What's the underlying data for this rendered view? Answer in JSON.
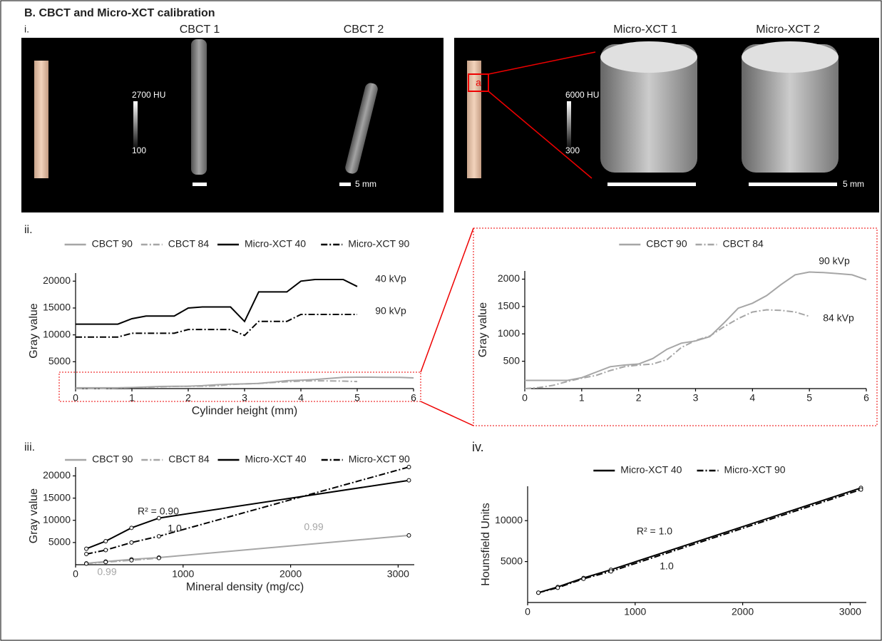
{
  "header": {
    "title": "B. CBCT and Micro-XCT calibration"
  },
  "panels": {
    "i": "i.",
    "ii": "ii.",
    "iii": "iii.",
    "iv": "iv."
  },
  "images": {
    "cbct1": "CBCT 1",
    "cbct2": "CBCT 2",
    "microxct1": "Micro-XCT 1",
    "microxct2": "Micro-XCT 2",
    "cbct_bar_top": "2700 HU",
    "cbct_bar_bottom": "100",
    "micro_bar_top": "6000 HU",
    "micro_bar_bottom": "300",
    "cbct_scale": "5 mm",
    "micro_scale": "5 mm",
    "region": "a"
  },
  "chart_data": [
    {
      "type": "line",
      "x_label": "Cylinder height (mm)",
      "y_label": "Gray value",
      "x": [
        0,
        0.25,
        0.5,
        0.75,
        1,
        1.25,
        1.5,
        1.75,
        2,
        2.25,
        2.5,
        2.75,
        3,
        3.25,
        3.5,
        3.75,
        4,
        4.25,
        4.5,
        4.75,
        5,
        5.25,
        5.5,
        5.75,
        6
      ],
      "series": [
        {
          "name": "CBCT 90",
          "color": "#a6a6a6",
          "dash": "solid",
          "values": [
            150,
            150,
            150,
            150,
            200,
            300,
            400,
            430,
            450,
            550,
            720,
            830,
            870,
            950,
            1200,
            1470,
            1560,
            1700,
            1900,
            2080,
            2130,
            2120,
            2100,
            2080,
            1990
          ]
        },
        {
          "name": "CBCT 84",
          "color": "#a6a6a6",
          "dash": "dashdot",
          "values": [
            0,
            20,
            60,
            130,
            190,
            240,
            330,
            400,
            430,
            450,
            530,
            750,
            880,
            960,
            1130,
            1280,
            1400,
            1440,
            1430,
            1400,
            1320,
            null,
            null,
            null,
            null
          ]
        },
        {
          "name": "Micro-XCT 40",
          "color": "#000000",
          "dash": "solid",
          "values": [
            12000,
            12000,
            12000,
            12000,
            13000,
            13500,
            13500,
            13500,
            15000,
            15200,
            15200,
            15200,
            12500,
            18000,
            18000,
            18000,
            20000,
            20300,
            20300,
            20300,
            19000,
            null,
            null,
            null,
            null
          ]
        },
        {
          "name": "Micro-XCT 90",
          "color": "#000000",
          "dash": "dashdot",
          "values": [
            9600,
            9600,
            9600,
            9600,
            10300,
            10300,
            10300,
            10300,
            11000,
            11000,
            11000,
            11000,
            9900,
            12500,
            12500,
            12500,
            13800,
            13800,
            13800,
            13800,
            13800,
            null,
            null,
            null,
            null
          ]
        }
      ],
      "annotations": [
        "40 kVp",
        "90 kVp"
      ],
      "xlim": [
        0,
        6
      ],
      "xticks": [
        0,
        1,
        2,
        3,
        4,
        5,
        6
      ],
      "ylim": [
        0,
        21500
      ],
      "yticks": [
        5000,
        10000,
        15000,
        20000
      ],
      "legend": "top"
    },
    {
      "type": "line",
      "y_label": "Gray value",
      "x": [
        0,
        0.25,
        0.5,
        0.75,
        1,
        1.25,
        1.5,
        1.75,
        2,
        2.25,
        2.5,
        2.75,
        3,
        3.25,
        3.5,
        3.75,
        4,
        4.25,
        4.5,
        4.75,
        5,
        5.25,
        5.5,
        5.75,
        6
      ],
      "series": [
        {
          "name": "CBCT 90",
          "color": "#a6a6a6",
          "dash": "solid",
          "values": [
            150,
            150,
            150,
            150,
            200,
            300,
            400,
            430,
            450,
            550,
            720,
            830,
            870,
            950,
            1200,
            1470,
            1560,
            1700,
            1900,
            2080,
            2130,
            2120,
            2100,
            2080,
            1990
          ]
        },
        {
          "name": "CBCT 84",
          "color": "#a6a6a6",
          "dash": "dashdot",
          "values": [
            0,
            20,
            60,
            130,
            190,
            240,
            330,
            400,
            430,
            450,
            530,
            750,
            880,
            960,
            1130,
            1280,
            1400,
            1440,
            1430,
            1400,
            1320,
            null,
            null,
            null,
            null
          ]
        }
      ],
      "annotations": [
        "90 kVp",
        "84 kVp"
      ],
      "xlim": [
        0,
        6
      ],
      "xticks": [
        0,
        1,
        2,
        3,
        4,
        5,
        6
      ],
      "ylim": [
        0,
        2150
      ],
      "yticks": [
        500,
        1000,
        1500,
        2000
      ],
      "legend": "top"
    },
    {
      "type": "line",
      "markers": true,
      "x_label": "Mineral density (mg/cc)",
      "y_label": "Gray value",
      "x": [
        100,
        280,
        520,
        775,
        3100
      ],
      "series": [
        {
          "name": "CBCT 90",
          "color": "#a6a6a6",
          "dash": "solid",
          "values": [
            300,
            700,
            1200,
            1600,
            6600
          ]
        },
        {
          "name": "CBCT 84",
          "color": "#a6a6a6",
          "dash": "dashdot",
          "values": [
            250,
            600,
            1000,
            1500,
            null
          ]
        },
        {
          "name": "Micro-XCT 40",
          "color": "#000000",
          "dash": "solid",
          "values": [
            3600,
            5300,
            8300,
            10500,
            19000
          ]
        },
        {
          "name": "Micro-XCT 90",
          "color": "#000000",
          "dash": "dashdot",
          "values": [
            2400,
            3300,
            5000,
            6400,
            22000
          ]
        }
      ],
      "annotations": [
        "R² = 0.90",
        "1.0",
        "0.99",
        "0.99"
      ],
      "xlim": [
        0,
        3150
      ],
      "xticks": [
        0,
        1000,
        2000,
        3000
      ],
      "ylim": [
        0,
        22000
      ],
      "yticks": [
        5000,
        10000,
        15000,
        20000
      ],
      "legend": "top"
    },
    {
      "type": "line",
      "markers": true,
      "y_label": "Hounsfield Units",
      "x": [
        100,
        280,
        520,
        775,
        3100
      ],
      "series": [
        {
          "name": "Micro-XCT 40",
          "color": "#000000",
          "dash": "solid",
          "values": [
            1200,
            1900,
            3000,
            4000,
            14000
          ]
        },
        {
          "name": "Micro-XCT 90",
          "color": "#000000",
          "dash": "dashdot",
          "values": [
            1200,
            1800,
            2900,
            3800,
            13800
          ]
        }
      ],
      "annotations": [
        "R² = 1.0",
        "1.0"
      ],
      "xlim": [
        0,
        3150
      ],
      "xticks": [
        0,
        1000,
        2000,
        3000
      ],
      "ylim": [
        0,
        14200
      ],
      "yticks": [
        5000,
        10000
      ],
      "legend": "top"
    }
  ]
}
